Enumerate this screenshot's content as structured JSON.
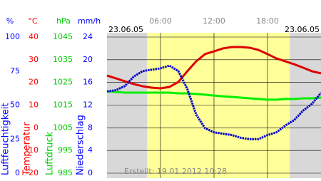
{
  "chart_data": {
    "type": "line",
    "date_left": "23.06.05",
    "date_right": "23.06.05",
    "footer": "Erstellt: 19.01.2012 10:28",
    "xlim": [
      0,
      24
    ],
    "xticks": [
      {
        "value": 6,
        "label": "06:00"
      },
      {
        "value": 12,
        "label": "12:00"
      },
      {
        "value": 18,
        "label": "18:00"
      }
    ],
    "daylight": [
      4.5,
      20.5
    ],
    "grid": true,
    "axes": [
      {
        "unit": "%",
        "title": "Luftfeuchtigkeit",
        "color": "#0000ff",
        "ylim": [
          0,
          100
        ],
        "yticks": [
          0,
          25,
          50,
          75,
          100
        ]
      },
      {
        "unit": "°C",
        "title": "Temperatur",
        "color": "#ff0000",
        "ylim": [
          -20,
          40
        ],
        "yticks": [
          -20,
          -10,
          0,
          10,
          20,
          30,
          40
        ]
      },
      {
        "unit": "hPa",
        "title": "Luftdruck",
        "color": "#00cc00",
        "ylim": [
          985,
          1045
        ],
        "yticks": [
          985,
          995,
          1005,
          1015,
          1025,
          1035,
          1045
        ]
      },
      {
        "unit": "mm/h",
        "title": "Niederschlag",
        "color": "#0000ff",
        "ylim": [
          0,
          24
        ],
        "yticks": [
          0,
          4,
          8,
          12,
          16,
          20,
          24
        ]
      }
    ],
    "x": [
      0,
      1,
      2,
      3,
      4,
      5,
      6,
      7,
      8,
      9,
      10,
      11,
      12,
      13,
      14,
      15,
      16,
      17,
      18,
      19,
      20,
      21,
      22,
      23,
      24
    ],
    "series": [
      {
        "axis": 2,
        "color": "#00ee00",
        "values": [
          1021.1,
          1020.8,
          1020.5,
          1020.5,
          1020.5,
          1020.5,
          1020.5,
          1020.5,
          1020.2,
          1020.2,
          1019.9,
          1019.6,
          1019.2,
          1018.9,
          1018.6,
          1018.3,
          1018,
          1017.7,
          1017.4,
          1017.4,
          1017.7,
          1017.7,
          1018,
          1018,
          1018.3
        ]
      },
      {
        "axis": 1,
        "color": "#dd0000",
        "values": [
          23,
          21.8,
          20.5,
          19.3,
          18.3,
          17.7,
          17.4,
          18,
          20.2,
          24.9,
          29.3,
          32.5,
          33.7,
          35,
          35.6,
          35.6,
          35.3,
          34.3,
          32.5,
          30.6,
          29.3,
          28,
          26.5,
          24.9,
          24
        ]
      },
      {
        "axis": 0,
        "color": "#0000cc",
        "values": [
          60,
          61,
          64,
          71,
          75,
          76,
          77,
          79,
          75,
          62,
          43,
          33,
          30,
          29,
          28,
          26,
          25,
          25,
          28,
          30,
          35,
          39,
          46,
          51,
          59
        ]
      }
    ]
  }
}
